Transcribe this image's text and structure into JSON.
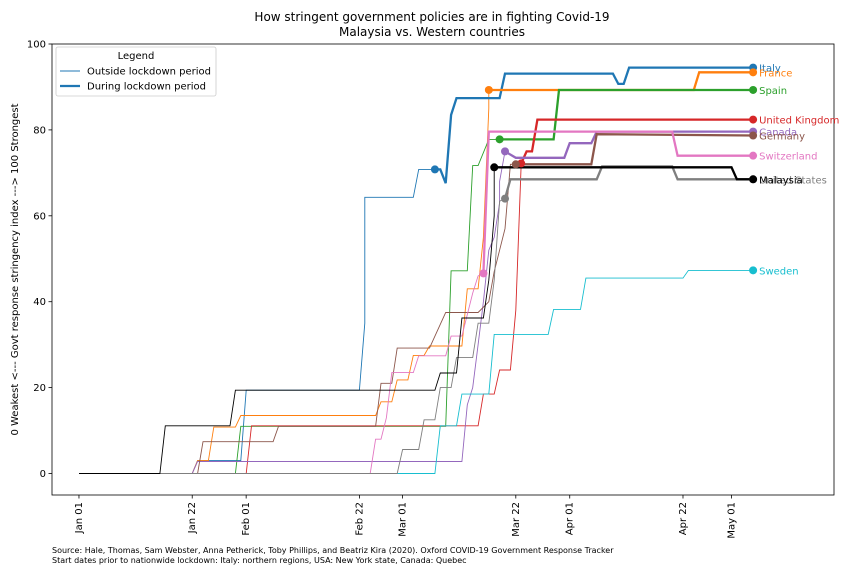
{
  "chart_data": {
    "type": "line",
    "title": "How stringent government policies are in fighting Covid-19",
    "subtitle": "Malaysia vs. Western countries",
    "xlabel": "",
    "ylabel": "0 Weakest <--- Govt response stringency index ---> 100 Strongest",
    "x_tick_labels": [
      "Jan 01",
      "Jan 22",
      "Feb 01",
      "Feb 22",
      "Mar 01",
      "Mar 22",
      "Apr 01",
      "Apr 22",
      "May 01"
    ],
    "x_tick_days": [
      0,
      21,
      31,
      52,
      60,
      81,
      91,
      112,
      121
    ],
    "xlim_days": [
      -5,
      140
    ],
    "ylim": [
      -5,
      100
    ],
    "y_ticks": [
      0,
      20,
      40,
      60,
      80,
      100
    ],
    "grid": false,
    "legend": {
      "title": "Legend",
      "position": "top-left",
      "entries": [
        "Outside lockdown period",
        "During lockdown period"
      ]
    },
    "series": [
      {
        "name": "Italy",
        "color": "#1f77b4",
        "before": [
          [
            0,
            0
          ],
          [
            21,
            0
          ],
          [
            22,
            3
          ],
          [
            30,
            3
          ],
          [
            31,
            19.4
          ],
          [
            52,
            19.4
          ],
          [
            53,
            35
          ],
          [
            53,
            64.3
          ],
          [
            62,
            64.3
          ],
          [
            63,
            70.8
          ],
          [
            66,
            70.8
          ]
        ],
        "during": [
          [
            66,
            70.8
          ],
          [
            67,
            70.8
          ],
          [
            68,
            67.6
          ],
          [
            69,
            83.5
          ],
          [
            70,
            87.4
          ],
          [
            78,
            87.4
          ],
          [
            79,
            93.1
          ],
          [
            99,
            93.1
          ],
          [
            100,
            90.7
          ],
          [
            101,
            90.7
          ],
          [
            102,
            94.5
          ],
          [
            125,
            94.5
          ]
        ],
        "lockdown_day": 66,
        "lockdown_value": 70.8,
        "end": 94.5
      },
      {
        "name": "France",
        "color": "#ff7f0e",
        "before": [
          [
            0,
            0
          ],
          [
            21,
            0
          ],
          [
            22,
            3
          ],
          [
            24,
            3
          ],
          [
            25,
            10.8
          ],
          [
            29,
            10.8
          ],
          [
            30,
            13.5
          ],
          [
            55,
            13.5
          ],
          [
            56,
            16.7
          ],
          [
            58,
            16.7
          ],
          [
            59,
            21.8
          ],
          [
            61,
            21.8
          ],
          [
            62,
            27.5
          ],
          [
            64,
            27.5
          ],
          [
            65,
            29.7
          ],
          [
            71,
            29.7
          ],
          [
            72,
            43
          ],
          [
            74,
            43
          ],
          [
            75,
            55
          ],
          [
            76,
            85
          ],
          [
            76,
            89.3
          ]
        ],
        "during": [
          [
            76,
            89.3
          ],
          [
            114,
            89.3
          ],
          [
            115,
            93.4
          ],
          [
            125,
            93.4
          ]
        ],
        "lockdown_day": 76,
        "lockdown_value": 89.3,
        "end": 93.4
      },
      {
        "name": "Spain",
        "color": "#2ca02c",
        "before": [
          [
            0,
            0
          ],
          [
            29,
            0
          ],
          [
            30,
            11
          ],
          [
            68,
            11
          ],
          [
            69,
            47.2
          ],
          [
            72,
            47.2
          ],
          [
            73,
            71.7
          ],
          [
            74,
            71.7
          ],
          [
            76,
            77.8
          ],
          [
            78,
            77.8
          ]
        ],
        "during": [
          [
            78,
            77.8
          ],
          [
            88,
            77.8
          ],
          [
            89,
            89.3
          ],
          [
            125,
            89.3
          ]
        ],
        "lockdown_day": 78,
        "lockdown_value": 77.8,
        "end": 89.3
      },
      {
        "name": "United Kingdom",
        "color": "#d62728",
        "before": [
          [
            0,
            0
          ],
          [
            31,
            0
          ],
          [
            32,
            11.1
          ],
          [
            69,
            11.1
          ],
          [
            70,
            11.1
          ],
          [
            74,
            11.1
          ],
          [
            75,
            18.5
          ],
          [
            77,
            18.5
          ],
          [
            78,
            24.1
          ],
          [
            80,
            24.1
          ],
          [
            81,
            38
          ],
          [
            82,
            72.2
          ]
        ],
        "during": [
          [
            82,
            72.2
          ],
          [
            83,
            75
          ],
          [
            84,
            75
          ],
          [
            85,
            82.4
          ],
          [
            125,
            82.4
          ]
        ],
        "lockdown_day": 82,
        "lockdown_value": 72.2,
        "end": 82.4
      },
      {
        "name": "Canada",
        "color": "#9467bd",
        "before": [
          [
            0,
            0
          ],
          [
            21,
            0
          ],
          [
            22,
            2.8
          ],
          [
            71,
            2.8
          ],
          [
            72,
            16
          ],
          [
            73,
            20
          ],
          [
            74,
            30
          ],
          [
            75,
            40
          ],
          [
            76,
            52
          ],
          [
            77,
            55
          ],
          [
            78,
            63
          ],
          [
            78,
            68
          ],
          [
            79,
            75
          ]
        ],
        "during": [
          [
            79,
            75
          ],
          [
            81,
            73.5
          ],
          [
            90,
            73.5
          ],
          [
            91,
            76.9
          ],
          [
            95,
            76.9
          ],
          [
            96,
            79.6
          ],
          [
            115,
            79.6
          ],
          [
            120,
            79.6
          ],
          [
            125,
            79.6
          ]
        ],
        "lockdown_day": 79,
        "lockdown_value": 75,
        "end": 79.6
      },
      {
        "name": "Germany",
        "color": "#8c564b",
        "before": [
          [
            0,
            0
          ],
          [
            22,
            0
          ],
          [
            23,
            7.4
          ],
          [
            36,
            7.4
          ],
          [
            37,
            11
          ],
          [
            55,
            11
          ],
          [
            56,
            21
          ],
          [
            58,
            21
          ],
          [
            59,
            29.2
          ],
          [
            63,
            29.2
          ],
          [
            65,
            29.2
          ],
          [
            68,
            37.5
          ],
          [
            74,
            37.5
          ],
          [
            76,
            40
          ],
          [
            77,
            47
          ],
          [
            78,
            52
          ],
          [
            79,
            57
          ],
          [
            80,
            72
          ],
          [
            81,
            72
          ]
        ],
        "during": [
          [
            81,
            72
          ],
          [
            95,
            72
          ],
          [
            96,
            79
          ],
          [
            125,
            78.7
          ]
        ],
        "lockdown_day": 81,
        "lockdown_value": 72,
        "end": 78.7
      },
      {
        "name": "Switzerland",
        "color": "#e377c2",
        "before": [
          [
            0,
            0
          ],
          [
            54,
            0
          ],
          [
            55,
            8
          ],
          [
            56,
            8
          ],
          [
            57,
            13
          ],
          [
            58,
            23.5
          ],
          [
            62,
            23.5
          ],
          [
            63,
            27.4
          ],
          [
            68,
            27.4
          ],
          [
            69,
            32
          ],
          [
            71,
            32
          ],
          [
            73,
            42
          ],
          [
            74,
            46
          ],
          [
            75,
            46.6
          ]
        ],
        "during": [
          [
            75,
            46.6
          ],
          [
            76,
            79.6
          ],
          [
            110,
            79.6
          ],
          [
            111,
            74
          ],
          [
            125,
            74
          ]
        ],
        "lockdown_day": 75,
        "lockdown_value": 46.6,
        "end": 74
      },
      {
        "name": "Sweden",
        "color": "#17becf",
        "before": [
          [
            0,
            0
          ],
          [
            66,
            0
          ],
          [
            67,
            11.1
          ],
          [
            70,
            11.1
          ],
          [
            71,
            18.5
          ],
          [
            76,
            18.5
          ],
          [
            77,
            32.4
          ],
          [
            87,
            32.4
          ],
          [
            88,
            38.2
          ],
          [
            93,
            38.2
          ],
          [
            94,
            45.5
          ],
          [
            112,
            45.5
          ],
          [
            113,
            47.3
          ],
          [
            125,
            47.3
          ]
        ],
        "during": [],
        "end": 47.3
      },
      {
        "name": "United States",
        "color": "#7f7f7f",
        "before": [
          [
            0,
            0
          ],
          [
            59,
            0
          ],
          [
            60,
            5.6
          ],
          [
            63,
            5.6
          ],
          [
            64,
            12.5
          ],
          [
            66,
            12.5
          ],
          [
            67,
            20
          ],
          [
            69,
            20
          ],
          [
            70,
            27
          ],
          [
            73,
            27
          ],
          [
            74,
            35
          ],
          [
            76,
            35
          ],
          [
            77,
            45
          ],
          [
            78,
            63.4
          ],
          [
            79,
            64
          ]
        ],
        "during": [
          [
            79,
            64
          ],
          [
            80,
            68.5
          ],
          [
            81,
            68.5
          ],
          [
            96,
            68.5
          ],
          [
            97,
            71.5
          ],
          [
            110,
            71.5
          ],
          [
            111,
            68.5
          ],
          [
            125,
            68.5
          ]
        ],
        "lockdown_day": 79,
        "lockdown_value": 64,
        "end": 68.5
      },
      {
        "name": "Malaysia",
        "color": "#000000",
        "before": [
          [
            0,
            0
          ],
          [
            15,
            0
          ],
          [
            16,
            11.1
          ],
          [
            28,
            11.1
          ],
          [
            29,
            19.4
          ],
          [
            66,
            19.4
          ],
          [
            67,
            23.4
          ],
          [
            70,
            23.4
          ],
          [
            71,
            36.2
          ],
          [
            74,
            36.2
          ],
          [
            75,
            36.2
          ],
          [
            76,
            45
          ],
          [
            77,
            60
          ],
          [
            77,
            71.3
          ]
        ],
        "during": [
          [
            77,
            71.3
          ],
          [
            121,
            71.3
          ],
          [
            122,
            68.5
          ],
          [
            125,
            68.5
          ]
        ],
        "lockdown_day": 77,
        "lockdown_value": 71.3,
        "end": 68.5
      }
    ],
    "end_labels": [
      {
        "text": "Italy",
        "color": "#1f77b4",
        "value": 94.5
      },
      {
        "text": "France",
        "color": "#ff7f0e",
        "value": 93.4
      },
      {
        "text": "Spain",
        "color": "#2ca02c",
        "value": 89.3
      },
      {
        "text": "United Kingdom",
        "color": "#d62728",
        "value": 82.4
      },
      {
        "text": "Canada",
        "color": "#9467bd",
        "value": 79.6
      },
      {
        "text": "Germany",
        "color": "#8c564b",
        "value": 78.7
      },
      {
        "text": "Switzerland",
        "color": "#e377c2",
        "value": 74
      },
      {
        "text": "United States",
        "color": "#7f7f7f",
        "value": 68.5
      },
      {
        "text": "Malaysia",
        "color": "#000000",
        "value": 68.5
      },
      {
        "text": "Sweden",
        "color": "#17becf",
        "value": 47.3
      }
    ]
  },
  "source": {
    "line1": "Source: Hale, Thomas, Sam Webster, Anna Petherick, Toby Phillips, and Beatriz Kira (2020). Oxford COVID-19 Government Response Tracker",
    "line2": "Start dates prior to nationwide lockdown: Italy: northern regions, USA: New York state, Canada: Quebec"
  }
}
